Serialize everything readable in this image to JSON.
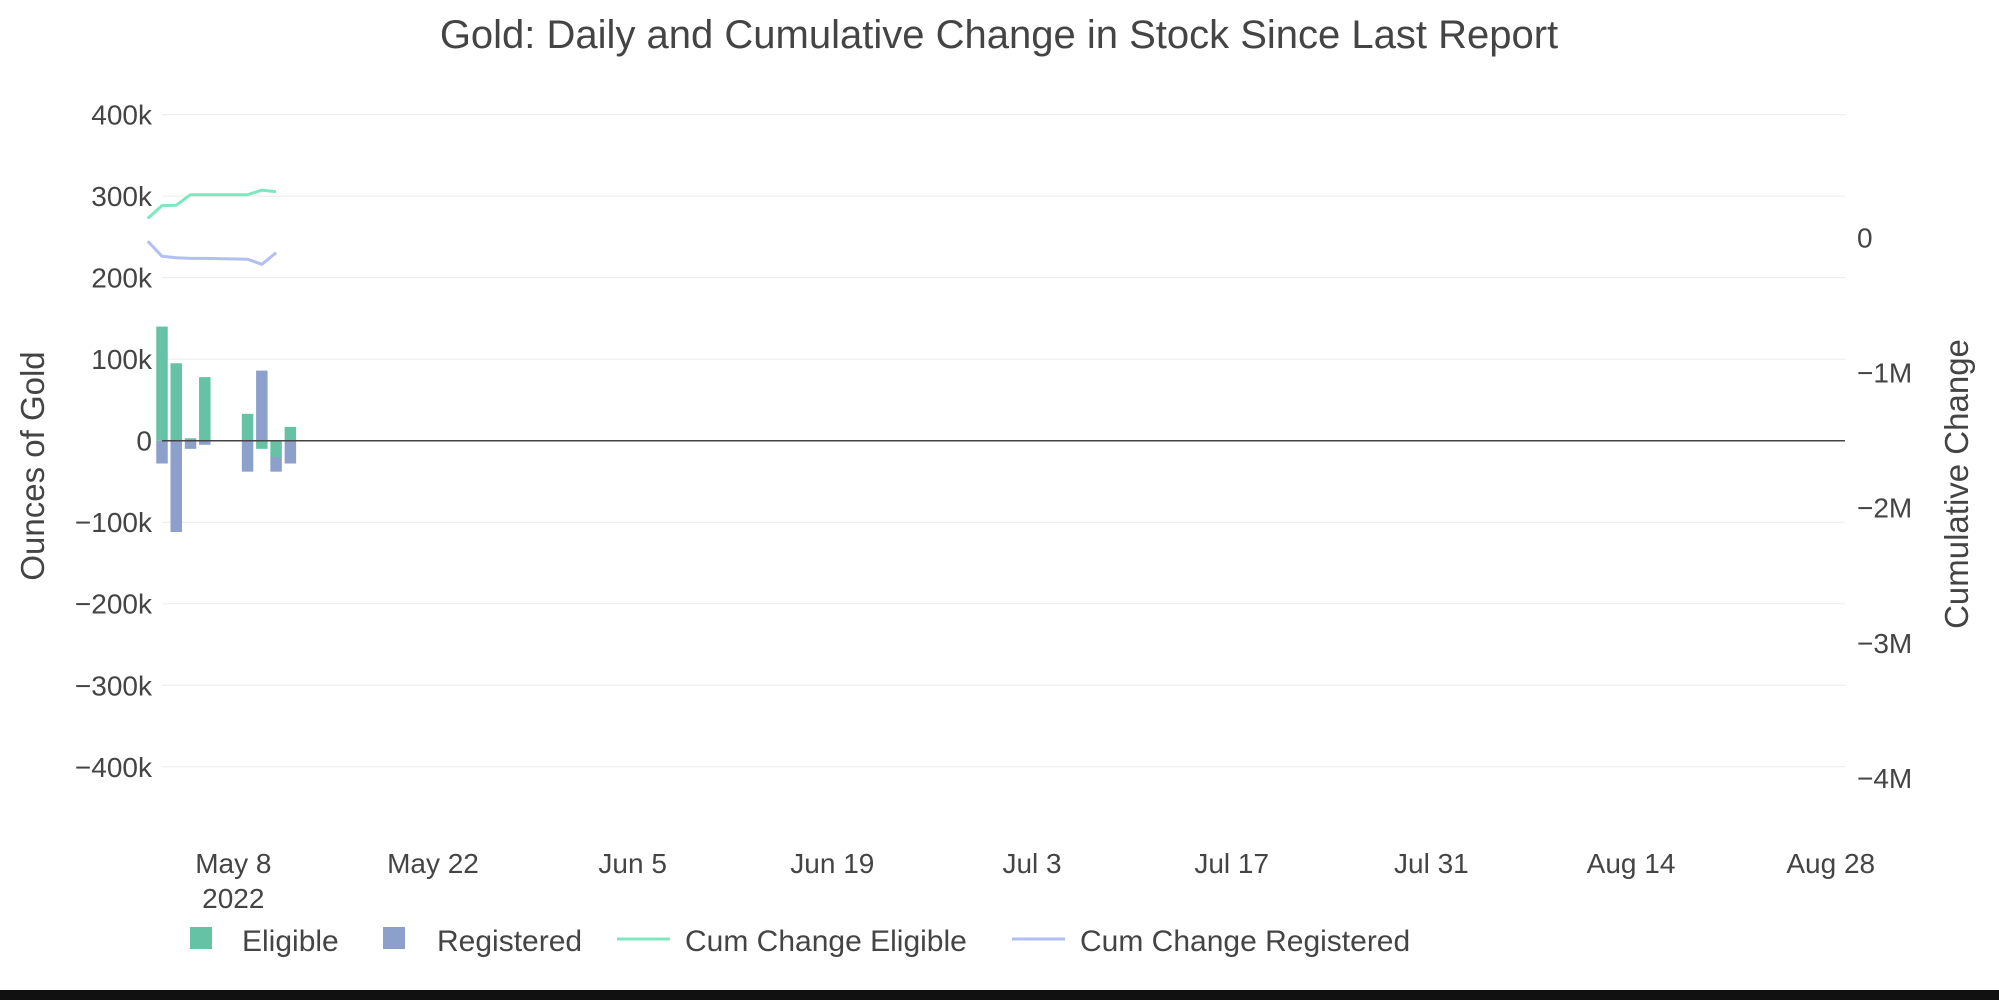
{
  "title": "Gold: Daily and Cumulative Change in Stock Since Last Report",
  "yaxis_left_title": "Ounces of Gold",
  "yaxis_right_title": "Cumulative Change",
  "legend": {
    "eligible": "Eligible",
    "registered": "Registered",
    "cum_eligible": "Cum Change Eligible",
    "cum_registered": "Cum Change Registered"
  },
  "colors": {
    "eligible_bar": "#66c2a5",
    "registered_bar": "#8da0cb",
    "cum_eligible_line": "#7de8c0",
    "cum_registered_line": "#b3bff0"
  },
  "chart_data": {
    "type": "bar",
    "barmode": "relative",
    "x_range": [
      "2022-05-03",
      "2022-08-29"
    ],
    "x_ticks": [
      {
        "date": "2022-05-08",
        "label": "May 8",
        "sublabel": "2022"
      },
      {
        "date": "2022-05-22",
        "label": "May 22"
      },
      {
        "date": "2022-06-05",
        "label": "Jun 5"
      },
      {
        "date": "2022-06-19",
        "label": "Jun 19"
      },
      {
        "date": "2022-07-03",
        "label": "Jul 3"
      },
      {
        "date": "2022-07-17",
        "label": "Jul 17"
      },
      {
        "date": "2022-07-31",
        "label": "Jul 31"
      },
      {
        "date": "2022-08-14",
        "label": "Aug 14"
      },
      {
        "date": "2022-08-28",
        "label": "Aug 28"
      }
    ],
    "y_left": {
      "range": [
        -480000,
        440000
      ],
      "ticks": [
        400000,
        300000,
        200000,
        100000,
        0,
        -100000,
        -200000,
        -300000,
        -400000
      ],
      "tick_labels": [
        "400k",
        "300k",
        "200k",
        "100k",
        "0",
        "−100k",
        "−200k",
        "−300k",
        "−400k"
      ]
    },
    "y_right": {
      "range": [
        -4400000,
        1150000
      ],
      "ticks": [
        0,
        -1000000,
        -2000000,
        -3000000,
        -4000000
      ],
      "tick_labels": [
        "0",
        "−1M",
        "−2M",
        "−3M",
        "−4M"
      ]
    },
    "series": [
      {
        "name": "Eligible",
        "kind": "bar",
        "axis": "left",
        "points": [
          {
            "x": "2022-05-03",
            "y": 140000
          },
          {
            "x": "2022-05-04",
            "y": 95000
          },
          {
            "x": "2022-05-05",
            "y": 3000
          },
          {
            "x": "2022-05-06",
            "y": 78000
          },
          {
            "x": "2022-05-09",
            "y": 33000
          },
          {
            "x": "2022-05-10",
            "y": -10000
          },
          {
            "x": "2022-05-11",
            "y": -20000
          },
          {
            "x": "2022-05-12",
            "y": 17000
          }
        ]
      },
      {
        "name": "Registered",
        "kind": "bar",
        "axis": "left",
        "points": [
          {
            "x": "2022-05-03",
            "y": -28000
          },
          {
            "x": "2022-05-04",
            "y": -112000
          },
          {
            "x": "2022-05-05",
            "y": -10000
          },
          {
            "x": "2022-05-06",
            "y": -5000
          },
          {
            "x": "2022-05-09",
            "y": -38000
          },
          {
            "x": "2022-05-10",
            "y": 86000
          },
          {
            "x": "2022-05-11",
            "y": -18000
          },
          {
            "x": "2022-05-12",
            "y": -28000
          }
        ]
      },
      {
        "name": "Cum Change Eligible",
        "kind": "line",
        "axis": "right",
        "points": [
          {
            "x": "2022-05-02",
            "y": 140000
          },
          {
            "x": "2022-05-03",
            "y": 235000
          },
          {
            "x": "2022-05-04",
            "y": 238000
          },
          {
            "x": "2022-05-05",
            "y": 316000
          },
          {
            "x": "2022-05-06",
            "y": 316000
          },
          {
            "x": "2022-05-09",
            "y": 316000
          },
          {
            "x": "2022-05-10",
            "y": 349000
          },
          {
            "x": "2022-05-11",
            "y": 339000
          }
        ]
      },
      {
        "name": "Cum Change Registered",
        "kind": "line",
        "axis": "right",
        "points": [
          {
            "x": "2022-05-02",
            "y": -28000
          },
          {
            "x": "2022-05-03",
            "y": -140000
          },
          {
            "x": "2022-05-04",
            "y": -150000
          },
          {
            "x": "2022-05-05",
            "y": -155000
          },
          {
            "x": "2022-05-06",
            "y": -155000
          },
          {
            "x": "2022-05-09",
            "y": -161000
          },
          {
            "x": "2022-05-10",
            "y": -199000
          },
          {
            "x": "2022-05-11",
            "y": -113000
          }
        ]
      }
    ]
  }
}
